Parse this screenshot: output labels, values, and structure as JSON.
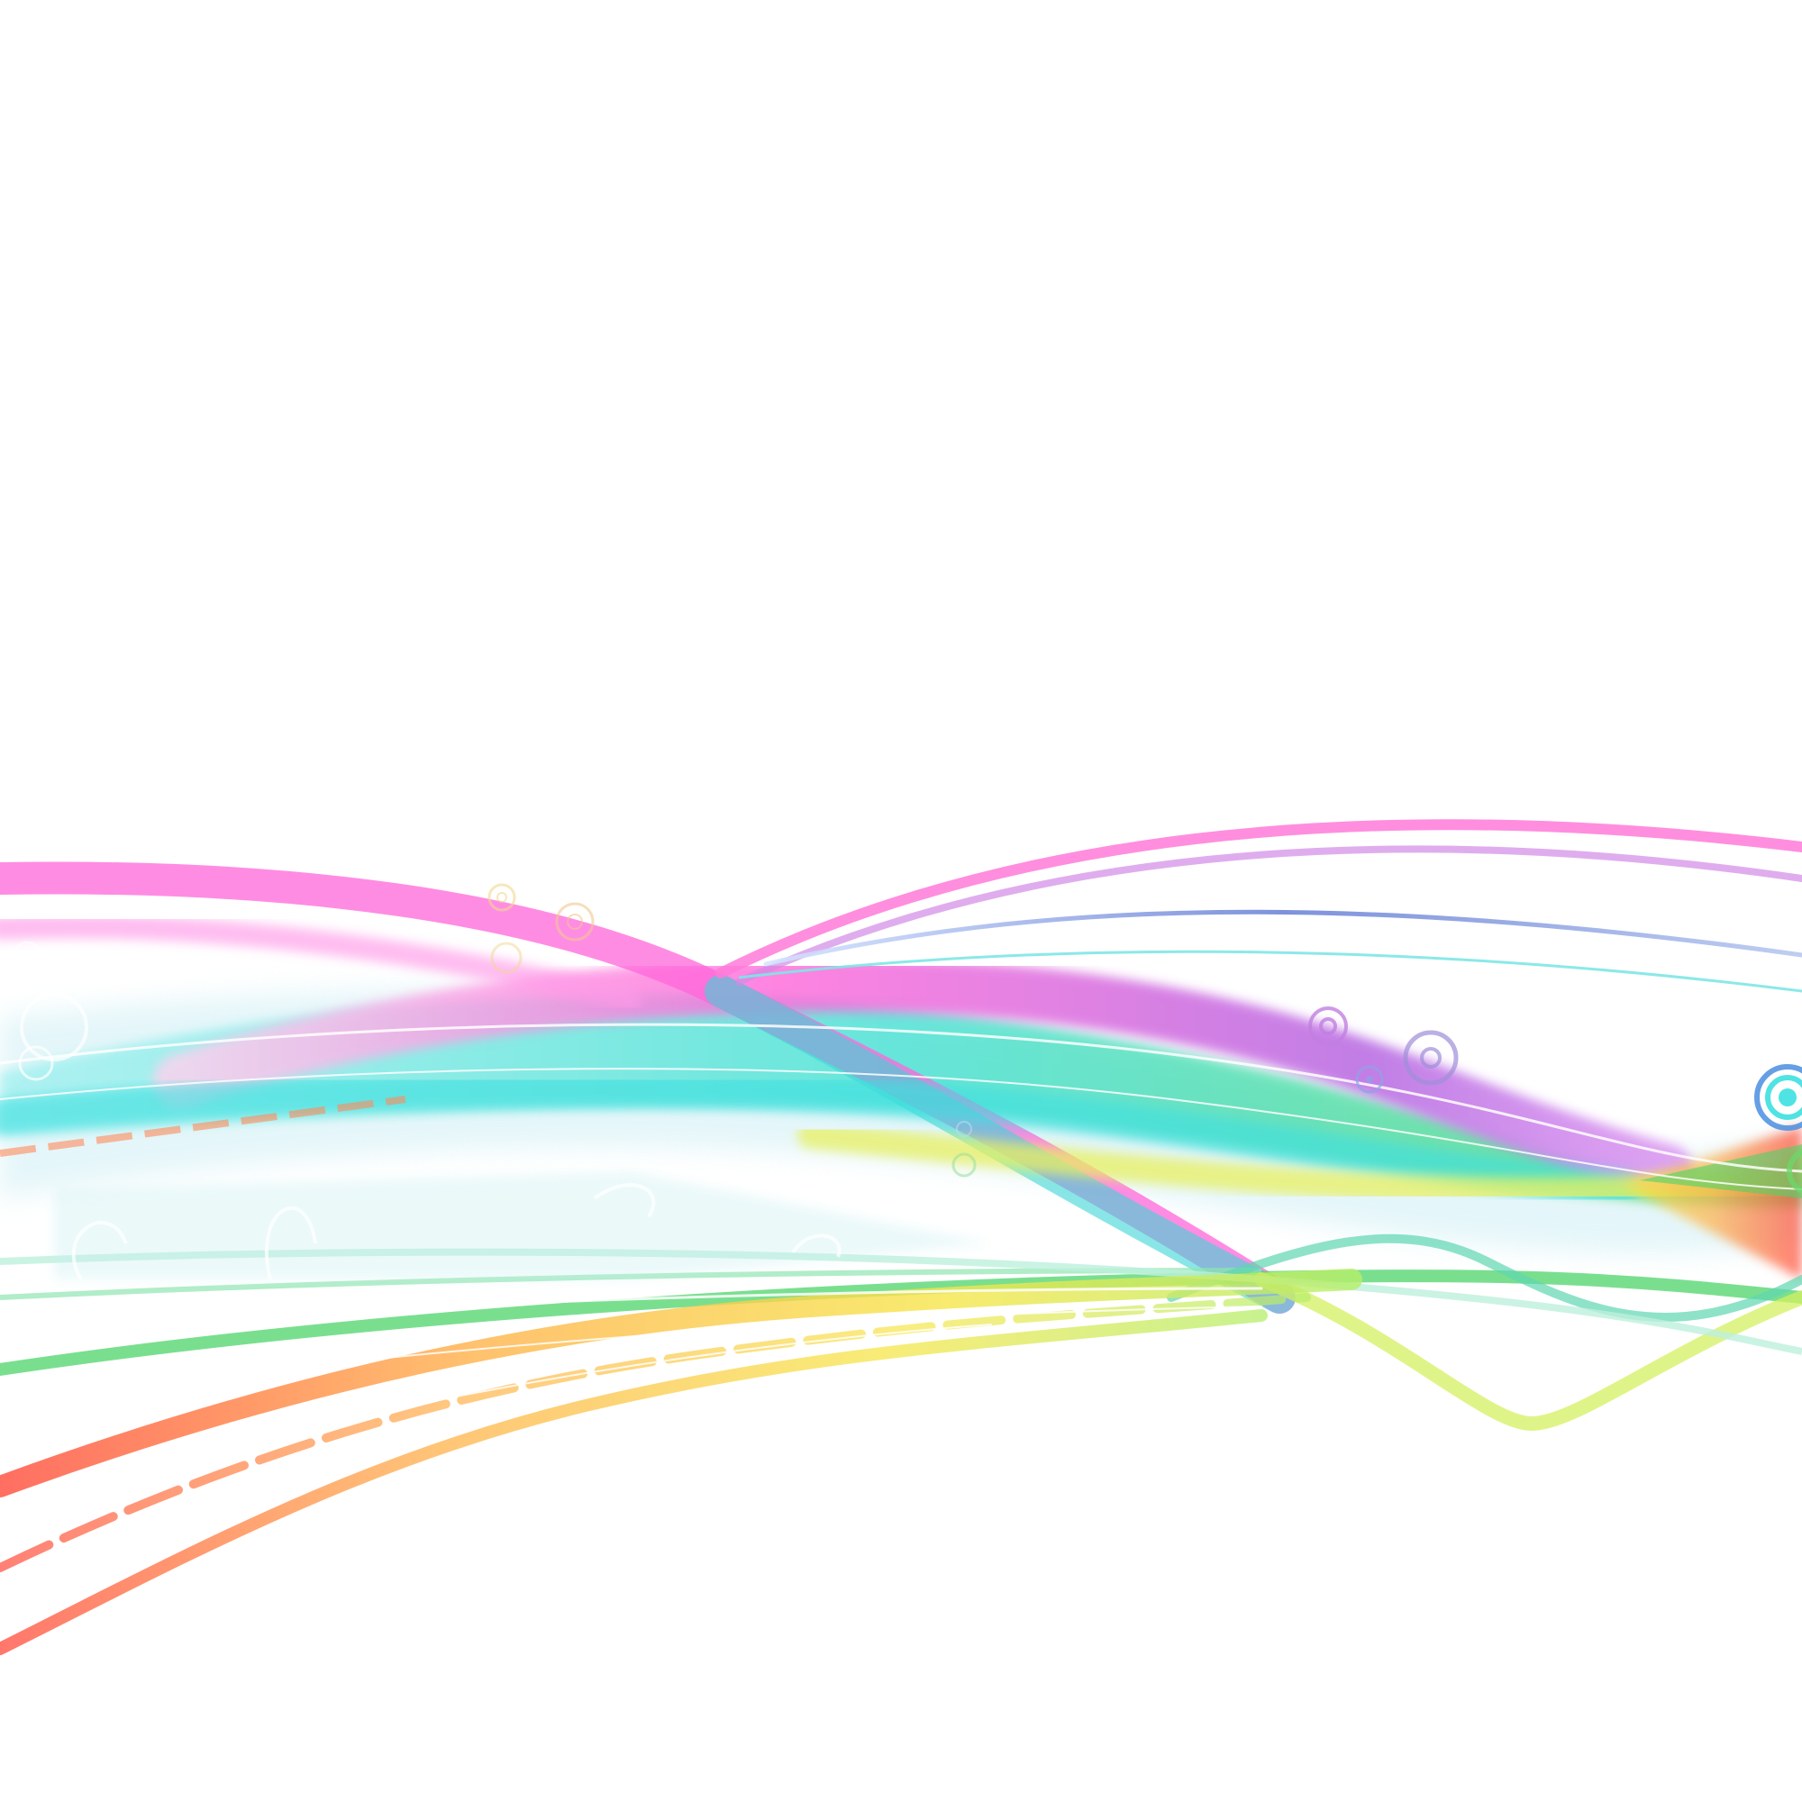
{
  "artwork": {
    "kind": "abstract rainbow wave ribbons",
    "background_color": "#ffffff",
    "palette": {
      "magenta": "#ff66d9",
      "pink": "#ff8ae6",
      "violet": "#6a5acd",
      "blue": "#4f6fd8",
      "cyan": "#3ce0e0",
      "teal": "#4fd6b0",
      "green": "#4cd46a",
      "lime": "#d4f060",
      "yellow": "#f6e64a",
      "orange": "#ffb24a",
      "red": "#ff4a3a",
      "pale_blue": "#a9c4f0",
      "lavender": "#b39ddb"
    },
    "decorations": [
      "concentric-ring-ornaments",
      "faint-swirl-patterns"
    ]
  }
}
